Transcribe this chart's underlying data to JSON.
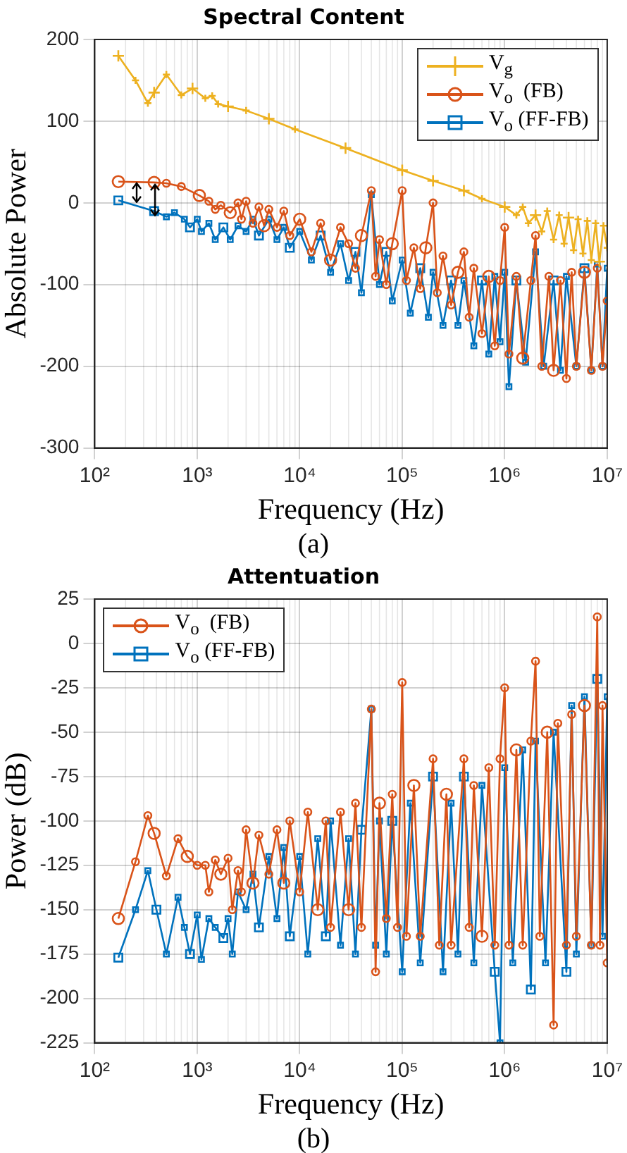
{
  "chart_data": [
    {
      "type": "line",
      "title": "Spectral Content",
      "xlabel": "Frequency (Hz)",
      "ylabel": "Absolute Power",
      "annotations": [
        "(a)"
      ],
      "grid": true,
      "legend": "top right",
      "log": "x",
      "line_style": "solid",
      "xlim": [
        100,
        10000000
      ],
      "xticks": [
        {
          "value": 100,
          "label": "10²"
        },
        {
          "value": 1000,
          "label": "10³"
        },
        {
          "value": 10000,
          "label": "10⁴"
        },
        {
          "value": 100000,
          "label": "10⁵"
        },
        {
          "value": 1000000,
          "label": "10⁶"
        },
        {
          "value": 10000000,
          "label": "10⁷"
        }
      ],
      "ylim": [
        -300,
        200
      ],
      "yticks": [
        -300,
        -200,
        -100,
        0,
        100,
        200
      ],
      "series": [
        {
          "name": "V$_{g}$",
          "color": "#edb120",
          "marker": "cross",
          "x": [
            170,
            250,
            330,
            380,
            500,
            700,
            900,
            1200,
            1400,
            1600,
            2000,
            3000,
            5000,
            9000,
            28000,
            100000,
            200000,
            400000,
            600000,
            1000000,
            1300000,
            1500000,
            1700000,
            2000000,
            2300000,
            2600000,
            3000000,
            3400000,
            3800000,
            4200000,
            4700000,
            5200000,
            5800000,
            6400000,
            7000000,
            7700000,
            8400000,
            9200000,
            10000000
          ],
          "values": [
            180,
            150,
            122,
            135,
            157,
            132,
            140,
            128,
            131,
            121,
            118,
            113,
            103,
            90,
            67,
            40,
            27,
            15,
            5,
            -5,
            -15,
            -5,
            -25,
            -15,
            -35,
            -10,
            -45,
            -15,
            -50,
            -18,
            -58,
            -20,
            -62,
            -22,
            -70,
            -25,
            -72,
            -28,
            -55
          ]
        },
        {
          "name": "V$_{o}$  (FB)",
          "color": "#d95319",
          "marker": "circle",
          "x": [
            170,
            380,
            500,
            700,
            1050,
            1300,
            1500,
            1700,
            2100,
            2500,
            2700,
            3000,
            3500,
            4000,
            4500,
            5000,
            6000,
            7000,
            8000,
            10000,
            13000,
            16000,
            20000,
            25000,
            30000,
            35000,
            40000,
            50000,
            55000,
            60000,
            70000,
            80000,
            100000,
            110000,
            130000,
            150000,
            170000,
            200000,
            220000,
            250000,
            300000,
            350000,
            400000,
            450000,
            500000,
            600000,
            700000,
            800000,
            900000,
            1000000,
            1100000,
            1300000,
            1500000,
            1800000,
            2000000,
            2300000,
            2700000,
            3000000,
            3500000,
            4000000,
            4500000,
            5000000,
            6000000,
            7000000,
            8000000,
            9000000,
            10000000
          ],
          "values": [
            26,
            25,
            24,
            20,
            9,
            2,
            -8,
            -3,
            -12,
            0,
            -20,
            2,
            -25,
            -5,
            -28,
            -8,
            -30,
            -10,
            -40,
            -20,
            -60,
            -25,
            -70,
            -30,
            -50,
            -80,
            -40,
            15,
            -90,
            -45,
            -100,
            -50,
            15,
            -95,
            -55,
            -105,
            -55,
            0,
            -110,
            -65,
            -125,
            -85,
            -60,
            -140,
            -80,
            -160,
            -90,
            -175,
            -95,
            -30,
            -185,
            -90,
            -190,
            -95,
            -40,
            -200,
            -90,
            -205,
            -95,
            -215,
            -85,
            -200,
            -85,
            -205,
            -80,
            -200,
            -120
          ]
        },
        {
          "name": "V$_{o}$ (FF-FB)",
          "color": "#0072bd",
          "marker": "square",
          "x": [
            170,
            380,
            500,
            600,
            750,
            850,
            1000,
            1100,
            1300,
            1500,
            1800,
            2100,
            2500,
            3000,
            3500,
            4000,
            5000,
            6000,
            7000,
            8000,
            10000,
            13000,
            16000,
            20000,
            25000,
            30000,
            35000,
            40000,
            50000,
            60000,
            70000,
            80000,
            100000,
            120000,
            150000,
            180000,
            200000,
            250000,
            300000,
            350000,
            400000,
            500000,
            600000,
            700000,
            800000,
            900000,
            1000000,
            1100000,
            1300000,
            1600000,
            2000000,
            2400000,
            3000000,
            3500000,
            4000000,
            5000000,
            6000000,
            7000000,
            8000000,
            9000000,
            10000000
          ],
          "values": [
            3,
            -10,
            -17,
            -12,
            -20,
            -30,
            -20,
            -35,
            -25,
            -45,
            -30,
            -45,
            -28,
            -35,
            -20,
            -40,
            -20,
            -45,
            -30,
            -55,
            -35,
            -70,
            -40,
            -85,
            -50,
            -95,
            -60,
            -110,
            10,
            -100,
            -60,
            -120,
            -70,
            -135,
            -80,
            -140,
            -85,
            -150,
            -95,
            -150,
            -95,
            -175,
            -95,
            -185,
            -90,
            -170,
            -85,
            -225,
            -95,
            -195,
            -60,
            -200,
            -95,
            -205,
            -90,
            -200,
            -80,
            -205,
            -75,
            -200,
            -80
          ]
        }
      ]
    },
    {
      "type": "line",
      "title": "Attentuation",
      "xlabel": "Frequency (Hz)",
      "ylabel": "Power (dB)",
      "annotations": [
        "(b)"
      ],
      "grid": true,
      "legend": "top left",
      "log": "x",
      "line_style": "solid",
      "xlim": [
        100,
        10000000
      ],
      "xticks": [
        {
          "value": 100,
          "label": "10²"
        },
        {
          "value": 1000,
          "label": "10³"
        },
        {
          "value": 10000,
          "label": "10⁴"
        },
        {
          "value": 100000,
          "label": "10⁵"
        },
        {
          "value": 1000000,
          "label": "10⁶"
        },
        {
          "value": 10000000,
          "label": "10⁷"
        }
      ],
      "ylim": [
        -225,
        25
      ],
      "yticks": [
        -225,
        -200,
        -175,
        -150,
        -125,
        -100,
        -75,
        -50,
        -25,
        0,
        25
      ],
      "series": [
        {
          "name": "V$_{o}$  (FB)",
          "color": "#d95319",
          "marker": "circle",
          "x": [
            170,
            250,
            330,
            380,
            500,
            650,
            800,
            1000,
            1200,
            1300,
            1500,
            1700,
            2000,
            2200,
            2500,
            2700,
            3000,
            3500,
            4000,
            5000,
            6000,
            7000,
            8000,
            10000,
            12000,
            15000,
            18000,
            20000,
            25000,
            30000,
            35000,
            40000,
            50000,
            55000,
            60000,
            70000,
            80000,
            90000,
            100000,
            110000,
            130000,
            150000,
            200000,
            230000,
            270000,
            300000,
            400000,
            450000,
            500000,
            600000,
            700000,
            800000,
            900000,
            1000000,
            1100000,
            1300000,
            1500000,
            1800000,
            2000000,
            2200000,
            2600000,
            3000000,
            3300000,
            4000000,
            4500000,
            5000000,
            6000000,
            7000000,
            8000000,
            8500000,
            9000000,
            10000000
          ],
          "values": [
            -155,
            -123,
            -97,
            -107,
            -131,
            -110,
            -120,
            -125,
            -125,
            -140,
            -122,
            -130,
            -121,
            -150,
            -128,
            -140,
            -105,
            -135,
            -108,
            -130,
            -105,
            -135,
            -100,
            -140,
            -95,
            -150,
            -100,
            -160,
            -95,
            -150,
            -90,
            -160,
            -37,
            -185,
            -90,
            -155,
            -85,
            -160,
            -22,
            -165,
            -80,
            -165,
            -65,
            -170,
            -85,
            -170,
            -65,
            -160,
            -80,
            -165,
            -70,
            -170,
            -65,
            -25,
            -170,
            -60,
            -170,
            -55,
            -10,
            -165,
            -50,
            -215,
            -45,
            -170,
            -40,
            -165,
            -35,
            -170,
            15,
            -170,
            -35,
            -180
          ]
        },
        {
          "name": "V$_{o}$ (FF-FB)",
          "color": "#0072bd",
          "marker": "square",
          "x": [
            170,
            250,
            330,
            400,
            500,
            650,
            750,
            850,
            1000,
            1100,
            1300,
            1500,
            1800,
            2000,
            2200,
            2500,
            3000,
            3500,
            4000,
            5000,
            6000,
            7000,
            8000,
            10000,
            12000,
            15000,
            18000,
            20000,
            25000,
            30000,
            35000,
            40000,
            50000,
            55000,
            60000,
            70000,
            80000,
            100000,
            120000,
            150000,
            200000,
            250000,
            300000,
            350000,
            400000,
            500000,
            600000,
            800000,
            900000,
            1000000,
            1200000,
            1500000,
            1800000,
            2000000,
            2500000,
            3000000,
            4000000,
            4500000,
            5000000,
            6000000,
            7000000,
            8000000,
            9000000,
            10000000
          ],
          "values": [
            -177,
            -150,
            -128,
            -150,
            -175,
            -143,
            -160,
            -175,
            -153,
            -178,
            -155,
            -160,
            -166,
            -155,
            -175,
            -140,
            -150,
            -130,
            -160,
            -120,
            -155,
            -115,
            -165,
            -120,
            -175,
            -110,
            -165,
            -100,
            -170,
            -110,
            -175,
            -105,
            -37,
            -170,
            -100,
            -175,
            -100,
            -185,
            -90,
            -180,
            -75,
            -185,
            -90,
            -175,
            -75,
            -180,
            -80,
            -185,
            -225,
            -70,
            -180,
            -60,
            -195,
            -55,
            -180,
            -50,
            -185,
            -35,
            -175,
            -30,
            -170,
            -20,
            -165,
            -30
          ]
        }
      ]
    }
  ]
}
